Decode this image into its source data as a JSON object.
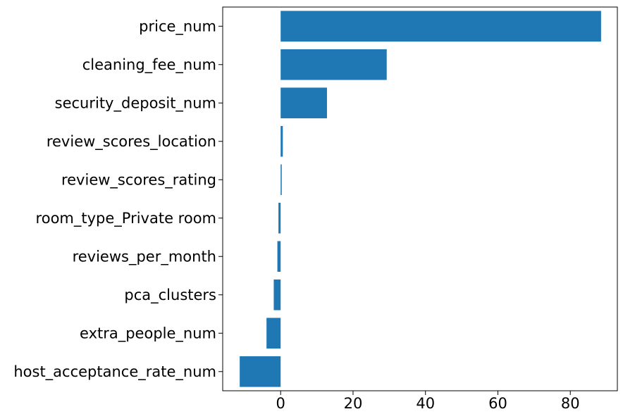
{
  "chart_data": {
    "type": "bar",
    "orientation": "horizontal",
    "categories": [
      "price_num",
      "cleaning_fee_num",
      "security_deposit_num",
      "review_scores_location",
      "review_scores_rating",
      "room_type_Private room",
      "reviews_per_month",
      "pca_clusters",
      "extra_people_num",
      "host_acceptance_rate_num"
    ],
    "values": [
      88.5,
      29.3,
      12.8,
      0.6,
      0.3,
      -0.6,
      -0.9,
      -1.9,
      -3.9,
      -11.3
    ],
    "xlim": [
      -16,
      93
    ],
    "xticks": [
      "0",
      "20",
      "40",
      "60",
      "80"
    ],
    "xtick_values": [
      0,
      20,
      40,
      60,
      80
    ],
    "title": "",
    "xlabel": "",
    "ylabel": "",
    "grid": false,
    "colors": {
      "bar": "#1f77b4",
      "axes": "#000000",
      "background": "#ffffff"
    }
  }
}
